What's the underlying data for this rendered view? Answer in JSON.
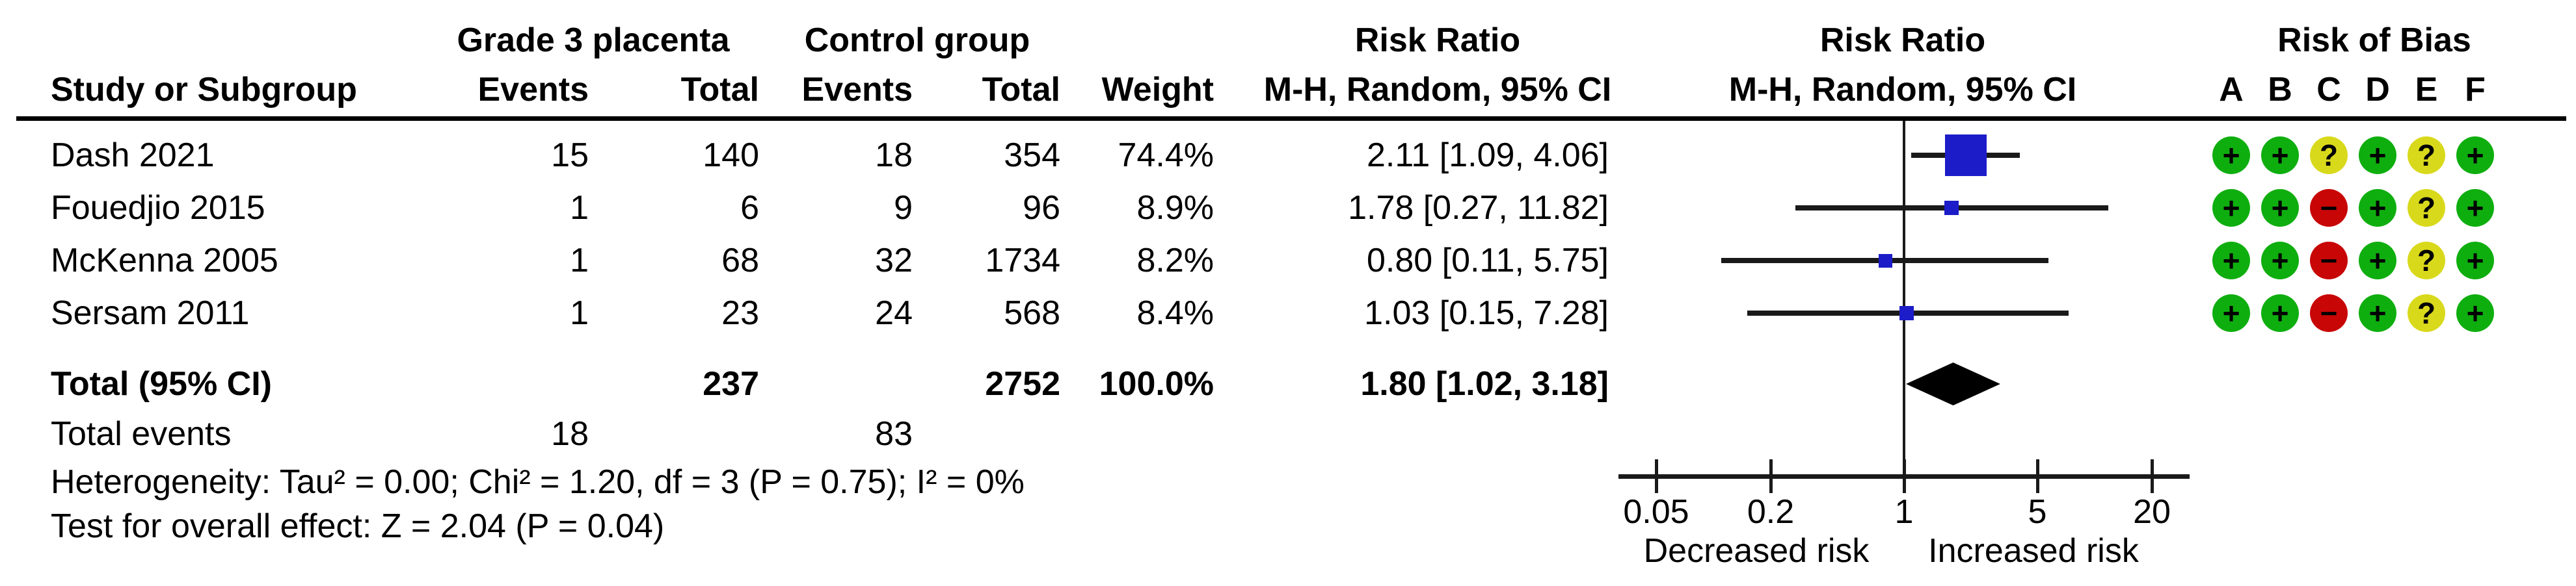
{
  "headers": {
    "group_experimental": "Grade 3 placenta",
    "group_control": "Control group",
    "study": "Study or Subgroup",
    "events": "Events",
    "total": "Total",
    "weight": "Weight",
    "rr_col_title": "Risk Ratio",
    "rr_col_subtitle": "M-H, Random, 95% CI",
    "plot_col_title": "Risk Ratio",
    "plot_col_subtitle": "M-H, Random, 95% CI",
    "rob_col_title": "Risk of Bias",
    "rob_letters": [
      "A",
      "B",
      "C",
      "D",
      "E",
      "F"
    ]
  },
  "chart_data": {
    "type": "forest",
    "effect_measure": "Risk Ratio",
    "model": "M-H, Random, 95% CI",
    "x_scale": "log",
    "x_ticks": [
      0.05,
      0.2,
      1,
      5,
      20
    ],
    "x_tick_labels": [
      "0.05",
      "0.2",
      "1",
      "5",
      "20"
    ],
    "x_axis_left_label": "Decreased risk",
    "x_axis_right_label": "Increased risk",
    "studies": [
      {
        "name": "Dash 2021",
        "exp_events": 15,
        "exp_total": 140,
        "ctl_events": 18,
        "ctl_total": 354,
        "weight": "74.4%",
        "weight_value": 74.4,
        "rr_label": "2.11 [1.09, 4.06]",
        "rr": 2.11,
        "ci_low": 1.09,
        "ci_high": 4.06,
        "risk_of_bias": [
          "low",
          "low",
          "unclear",
          "low",
          "unclear",
          "low"
        ]
      },
      {
        "name": "Fouedjio 2015",
        "exp_events": 1,
        "exp_total": 6,
        "ctl_events": 9,
        "ctl_total": 96,
        "weight": "8.9%",
        "weight_value": 8.9,
        "rr_label": "1.78 [0.27, 11.82]",
        "rr": 1.78,
        "ci_low": 0.27,
        "ci_high": 11.82,
        "risk_of_bias": [
          "low",
          "low",
          "high",
          "low",
          "unclear",
          "low"
        ]
      },
      {
        "name": "McKenna 2005",
        "exp_events": 1,
        "exp_total": 68,
        "ctl_events": 32,
        "ctl_total": 1734,
        "weight": "8.2%",
        "weight_value": 8.2,
        "rr_label": "0.80 [0.11, 5.75]",
        "rr": 0.8,
        "ci_low": 0.11,
        "ci_high": 5.75,
        "risk_of_bias": [
          "low",
          "low",
          "high",
          "low",
          "unclear",
          "low"
        ]
      },
      {
        "name": "Sersam 2011",
        "exp_events": 1,
        "exp_total": 23,
        "ctl_events": 24,
        "ctl_total": 568,
        "weight": "8.4%",
        "weight_value": 8.4,
        "rr_label": "1.03 [0.15, 7.28]",
        "rr": 1.03,
        "ci_low": 0.15,
        "ci_high": 7.28,
        "risk_of_bias": [
          "low",
          "low",
          "high",
          "low",
          "unclear",
          "low"
        ]
      }
    ],
    "total": {
      "label": "Total (95% CI)",
      "exp_total": 237,
      "ctl_total": 2752,
      "weight": "100.0%",
      "rr_label": "1.80 [1.02, 3.18]",
      "rr": 1.8,
      "ci_low": 1.02,
      "ci_high": 3.18
    },
    "total_events": {
      "label": "Total events",
      "exp_events": 18,
      "ctl_events": 83
    },
    "heterogeneity": "Heterogeneity: Tau² = 0.00; Chi² = 1.20, df = 3 (P = 0.75); I² = 0%",
    "overall_effect": "Test for overall effect: Z = 2.04 (P = 0.04)"
  },
  "rob_legend": {
    "low": "+",
    "unclear": "?",
    "high": "−"
  },
  "colors": {
    "marker_blue": "#1c1cc8",
    "rob_low": "#0fae0f",
    "rob_unclear": "#d9d91c",
    "rob_high": "#c80606",
    "line": "#1a1a1a",
    "diamond": "#000000"
  }
}
